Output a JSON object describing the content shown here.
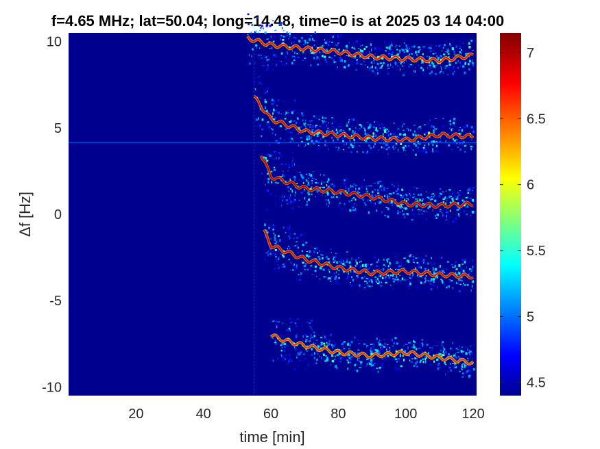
{
  "chart_data": {
    "type": "heatmap",
    "title": "f=4.65 MHz;  lat=50.04; long=14.48, time=0 is at 2025 03 14 04:00",
    "xlabel": "time [min]",
    "ylabel": "Δf [Hz]",
    "xlim": [
      0,
      121
    ],
    "ylim": [
      -10.5,
      10.5
    ],
    "xticks": [
      20,
      40,
      60,
      80,
      100,
      120
    ],
    "xtick_labels": [
      "20",
      "40",
      "60",
      "80",
      "100",
      "120"
    ],
    "yticks": [
      10,
      5,
      0,
      -5,
      -10
    ],
    "ytick_labels": [
      "10",
      "5",
      "0",
      "-5",
      "-10"
    ],
    "colorbar": {
      "limits": [
        4.4,
        7.15
      ],
      "ticks": [
        4.5,
        5,
        5.5,
        6,
        6.5,
        7
      ],
      "tick_labels": [
        "4.5",
        "5",
        "5.5",
        "6",
        "6.5",
        "7"
      ],
      "colormap": "jet"
    },
    "background_color": "#00008f",
    "constant_line_hz": 4.15,
    "activity_onset_min": 55,
    "traces": [
      {
        "x": [
          53,
          60,
          70,
          80,
          90,
          100,
          110,
          120
        ],
        "y": [
          10.2,
          9.8,
          9.6,
          9.4,
          9.1,
          9.0,
          8.9,
          9.2
        ],
        "intensity": 6.8
      },
      {
        "x": [
          55,
          60,
          70,
          80,
          90,
          100,
          110,
          120
        ],
        "y": [
          6.8,
          5.5,
          4.8,
          4.6,
          4.4,
          4.3,
          4.6,
          4.5
        ],
        "intensity": 6.9
      },
      {
        "x": [
          57,
          60,
          70,
          80,
          90,
          100,
          110,
          120
        ],
        "y": [
          3.5,
          2.2,
          1.5,
          1.3,
          1.0,
          0.6,
          0.5,
          0.6
        ],
        "intensity": 7.0
      },
      {
        "x": [
          58,
          60,
          70,
          80,
          90,
          100,
          110,
          120
        ],
        "y": [
          -1.0,
          -1.8,
          -2.6,
          -3.1,
          -3.4,
          -3.3,
          -3.5,
          -3.6
        ],
        "intensity": 6.9
      },
      {
        "x": [
          60,
          64,
          70,
          80,
          90,
          100,
          110,
          120
        ],
        "y": [
          -7.0,
          -7.3,
          -7.6,
          -8.0,
          -8.2,
          -8.0,
          -8.3,
          -8.6
        ],
        "intensity": 6.7
      }
    ]
  }
}
